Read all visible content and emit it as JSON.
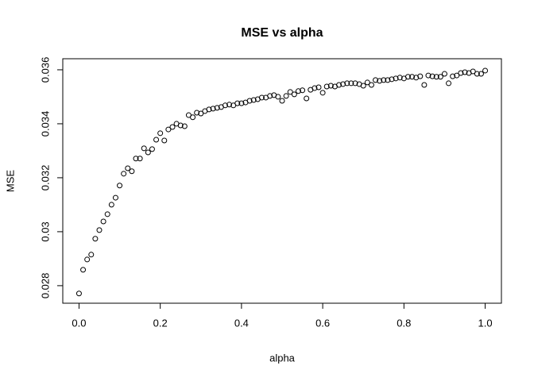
{
  "chart_data": {
    "type": "scatter",
    "title": "MSE vs alpha",
    "x_label": "alpha",
    "y_label": "MSE",
    "x": [
      0,
      0.01,
      0.02,
      0.03,
      0.04,
      0.05,
      0.06,
      0.07,
      0.08,
      0.09,
      0.1,
      0.11,
      0.12,
      0.13,
      0.14,
      0.15,
      0.16,
      0.17,
      0.18,
      0.19,
      0.2,
      0.21,
      0.22,
      0.23,
      0.24,
      0.25,
      0.26,
      0.27,
      0.28,
      0.29,
      0.3,
      0.31,
      0.32,
      0.33,
      0.34,
      0.35,
      0.36,
      0.37,
      0.38,
      0.39,
      0.4,
      0.41,
      0.42,
      0.43,
      0.44,
      0.45,
      0.46,
      0.47,
      0.48,
      0.49,
      0.5,
      0.51,
      0.52,
      0.53,
      0.54,
      0.55,
      0.56,
      0.57,
      0.58,
      0.59,
      0.6,
      0.61,
      0.62,
      0.63,
      0.64,
      0.65,
      0.66,
      0.67,
      0.68,
      0.69,
      0.7,
      0.71,
      0.72,
      0.73,
      0.74,
      0.75,
      0.76,
      0.77,
      0.78,
      0.79,
      0.8,
      0.81,
      0.82,
      0.83,
      0.84,
      0.85,
      0.86,
      0.87,
      0.88,
      0.89,
      0.9,
      0.91,
      0.92,
      0.93,
      0.94,
      0.95,
      0.96,
      0.97,
      0.98,
      0.99,
      1
    ],
    "values": [
      0.02771,
      0.02859,
      0.02897,
      0.02915,
      0.02974,
      0.03006,
      0.03038,
      0.03065,
      0.031,
      0.03126,
      0.03171,
      0.03215,
      0.03235,
      0.03224,
      0.03271,
      0.03271,
      0.03309,
      0.03294,
      0.03306,
      0.03341,
      0.03365,
      0.03338,
      0.03379,
      0.03388,
      0.034,
      0.03394,
      0.03391,
      0.03432,
      0.03424,
      0.03441,
      0.03438,
      0.03447,
      0.03453,
      0.03456,
      0.03459,
      0.03462,
      0.03468,
      0.03471,
      0.03468,
      0.03476,
      0.03476,
      0.03479,
      0.03485,
      0.03488,
      0.03491,
      0.03497,
      0.03497,
      0.03503,
      0.03506,
      0.035,
      0.03485,
      0.03503,
      0.03518,
      0.03509,
      0.03521,
      0.03524,
      0.03494,
      0.03526,
      0.03532,
      0.03535,
      0.03515,
      0.03538,
      0.03541,
      0.03538,
      0.03544,
      0.03547,
      0.0355,
      0.0355,
      0.0355,
      0.03547,
      0.03541,
      0.03553,
      0.03544,
      0.03562,
      0.03559,
      0.03562,
      0.03562,
      0.03565,
      0.03568,
      0.03571,
      0.03568,
      0.03574,
      0.03574,
      0.03571,
      0.03576,
      0.03544,
      0.03579,
      0.03576,
      0.03574,
      0.03574,
      0.03585,
      0.0355,
      0.03576,
      0.03579,
      0.03588,
      0.03591,
      0.03588,
      0.03594,
      0.03585,
      0.03585,
      0.03597
    ],
    "color": "#000000",
    "xlim": [
      -0.04,
      1.04
    ],
    "xticks": [
      {
        "value": 0,
        "label": "0.0"
      },
      0.2,
      0.4,
      0.6,
      0.8,
      {
        "value": 1,
        "label": "1.0"
      }
    ],
    "ylim": [
      0.02735,
      0.03641
    ],
    "yticks": [
      0.028,
      0.03,
      0.032,
      0.034,
      0.036
    ]
  }
}
